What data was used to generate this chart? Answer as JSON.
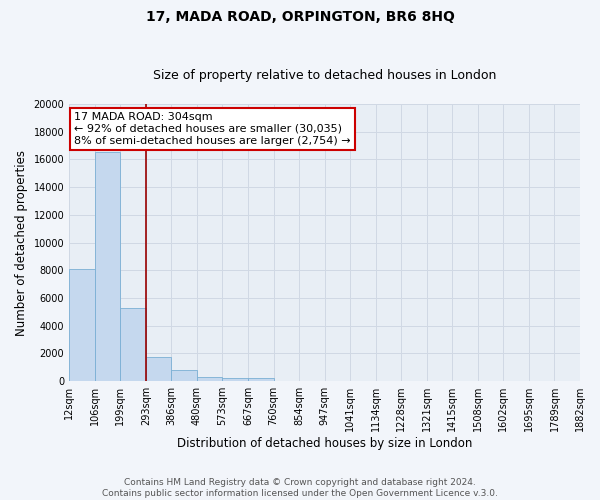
{
  "title": "17, MADA ROAD, ORPINGTON, BR6 8HQ",
  "subtitle": "Size of property relative to detached houses in London",
  "xlabel": "Distribution of detached houses by size in London",
  "ylabel": "Number of detached properties",
  "bar_values": [
    8100,
    16500,
    5300,
    1750,
    800,
    300,
    200,
    200,
    0,
    0,
    0,
    0,
    0,
    0,
    0,
    0,
    0,
    0,
    0,
    0
  ],
  "bar_labels": [
    "12sqm",
    "106sqm",
    "199sqm",
    "293sqm",
    "386sqm",
    "480sqm",
    "573sqm",
    "667sqm",
    "760sqm",
    "854sqm",
    "947sqm",
    "1041sqm",
    "1134sqm",
    "1228sqm",
    "1321sqm",
    "1415sqm",
    "1508sqm",
    "1602sqm",
    "1695sqm",
    "1789sqm",
    "1882sqm"
  ],
  "bar_color": "#c5d8ee",
  "bar_edge_color": "#7aafd4",
  "ylim": [
    0,
    20000
  ],
  "yticks": [
    0,
    2000,
    4000,
    6000,
    8000,
    10000,
    12000,
    14000,
    16000,
    18000,
    20000
  ],
  "property_line_x": 3.0,
  "property_line_color": "#990000",
  "annotation_title": "17 MADA ROAD: 304sqm",
  "annotation_line1": "← 92% of detached houses are smaller (30,035)",
  "annotation_line2": "8% of semi-detached houses are larger (2,754) →",
  "annotation_box_color": "#ffffff",
  "annotation_box_edge_color": "#cc0000",
  "footer_line1": "Contains HM Land Registry data © Crown copyright and database right 2024.",
  "footer_line2": "Contains public sector information licensed under the Open Government Licence v.3.0.",
  "plot_bg_color": "#e8eef5",
  "fig_bg_color": "#f2f5fa",
  "grid_color": "#d0d8e4",
  "title_fontsize": 10,
  "subtitle_fontsize": 9,
  "label_fontsize": 8.5,
  "tick_fontsize": 7,
  "footer_fontsize": 6.5,
  "annotation_fontsize": 8
}
